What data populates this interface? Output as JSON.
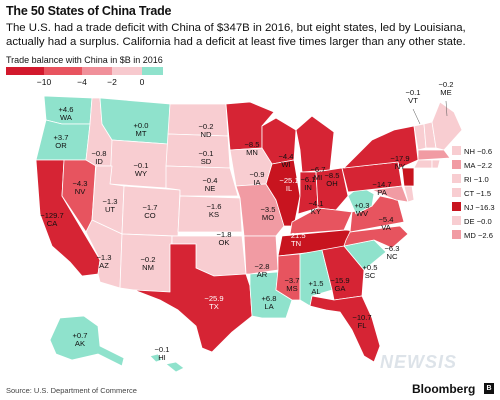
{
  "header": {
    "title": "The 50 States of China Trade",
    "subtitle": "The U.S. had a trade deficit with China of $347B in 2016, but eight states, led by Louisiana, actually had a surplus. California had a deficit at least five times larger than any other state."
  },
  "legend": {
    "title": "Trade balance with China in $B in 2016",
    "ticks": [
      "−10",
      "−4",
      "−2",
      "0"
    ],
    "colors": [
      "#d2192d",
      "#e8545f",
      "#f0909a",
      "#f7c9ce",
      "#8fe2cc"
    ]
  },
  "colors": {
    "very_deep": "#c8141f",
    "deep": "#d62434",
    "mid": "#e7545f",
    "light": "#f19ba3",
    "pale": "#f8cdd1",
    "surplus": "#8fe2cc",
    "water": "#ffffff"
  },
  "states": {
    "WA": "+4.6",
    "OR": "+3.7",
    "CA": "−129.7",
    "NV": "−4.3",
    "ID": "−0.8",
    "MT": "+0.0",
    "WY": "−0.1",
    "UT": "−1.3",
    "AZ": "−1.3",
    "CO": "−1.7",
    "NM": "−0.2",
    "ND": "−0.2",
    "SD": "−0.1",
    "NE": "−0.4",
    "KS": "−1.6",
    "OK": "−1.8",
    "TX": "−25.9",
    "MN": "−8.5",
    "IA": "−0.9",
    "MO": "−3.5",
    "AR": "−2.8",
    "LA": "+6.8",
    "WI": "−4.4",
    "IL": "−25.1",
    "MI": "−6.7",
    "IN": "−6.1",
    "OH": "−8.5",
    "KY": "−4.1",
    "TN": "−21.5",
    "MS": "−3.7",
    "AL": "+1.5",
    "GA": "−15.9",
    "FL": "−10.7",
    "SC": "+0.5",
    "NC": "−6.3",
    "VA": "−5.4",
    "WV": "+0.3",
    "PA": "−14.7",
    "NY": "−17.9",
    "VT": "−0.1",
    "ME": "−0.2",
    "AK": "+0.7",
    "HI": "−0.1"
  },
  "northeast_legend": [
    {
      "code": "NH",
      "value": "−0.6",
      "color": "#f8cdd1"
    },
    {
      "code": "MA",
      "value": "−2.2",
      "color": "#f19ba3"
    },
    {
      "code": "RI",
      "value": "−1.0",
      "color": "#f8cdd1"
    },
    {
      "code": "CT",
      "value": "−1.5",
      "color": "#f8cdd1"
    },
    {
      "code": "NJ",
      "value": "−16.3",
      "color": "#c8141f"
    },
    {
      "code": "DE",
      "value": "−0.0",
      "color": "#f8cdd1"
    },
    {
      "code": "MD",
      "value": "−2.6",
      "color": "#f19ba3"
    }
  ],
  "footer": {
    "source": "Source: U.S. Department of Commerce",
    "brand": "Bloomberg",
    "watermark": "NEWSIS"
  }
}
